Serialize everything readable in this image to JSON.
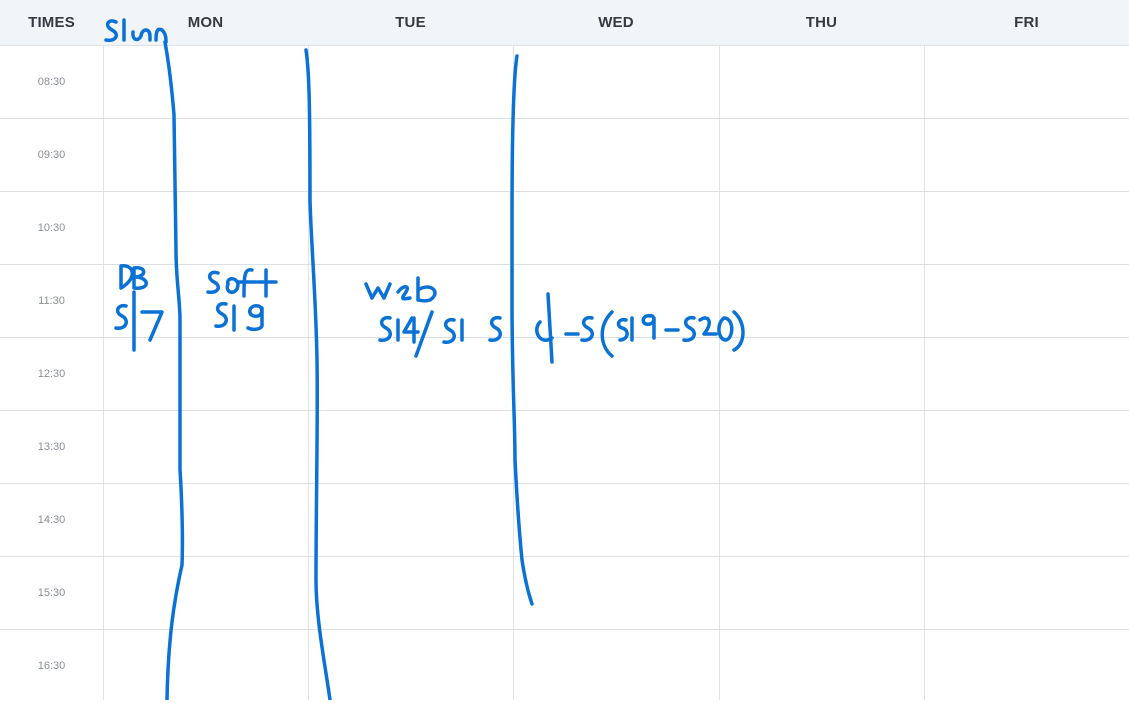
{
  "header": {
    "times_label": "TIMES",
    "days": [
      "MON",
      "TUE",
      "WED",
      "THU",
      "FRI"
    ]
  },
  "times": [
    "08:30",
    "09:30",
    "10:30",
    "11:30",
    "12:30",
    "13:30",
    "14:30",
    "15:30",
    "16:30"
  ],
  "annotations": {
    "top": "sl.n",
    "db": "DB",
    "db_code": "5|7",
    "soft": "soft",
    "soft_code": "519",
    "web": "web",
    "web_code": "514/515",
    "right_note": "d-5(519-520)"
  },
  "colors": {
    "ink": "#0a72d4",
    "header_bg": "#f2f5f8",
    "grid_line": "#dcdfe3"
  }
}
